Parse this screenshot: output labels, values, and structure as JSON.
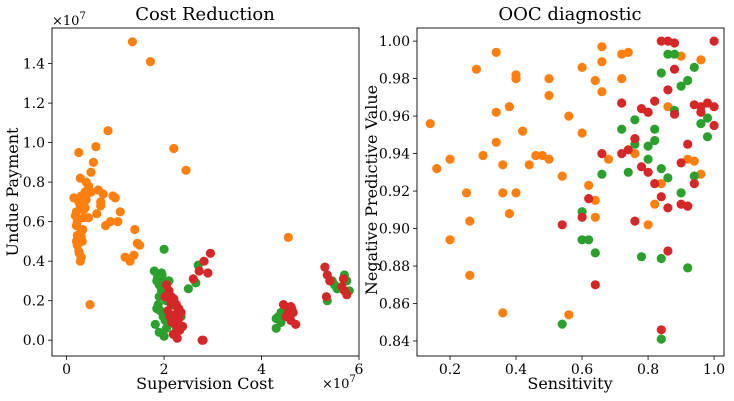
{
  "colors": {
    "orange": "#ff7f0e",
    "green": "#2ca02c",
    "red": "#d62728"
  },
  "chart_data": [
    {
      "type": "scatter",
      "title": "Cost Reduction",
      "xlabel": "Supervision Cost",
      "ylabel": "Undue Payment",
      "x_exponent_label": "×10^7",
      "y_exponent_label": "×10^7",
      "xlim": [
        -0.3,
        6.0
      ],
      "ylim": [
        -0.08,
        1.58
      ],
      "xticks": [
        0,
        2,
        4,
        6
      ],
      "xtick_labels": [
        "0",
        "2",
        "4",
        "6"
      ],
      "yticks": [
        0.0,
        0.2,
        0.4,
        0.6,
        0.8,
        1.0,
        1.2,
        1.4
      ],
      "ytick_labels": [
        "0.0",
        "0.2",
        "0.4",
        "0.6",
        "0.8",
        "1.0",
        "1.2",
        "1.4"
      ],
      "series": [
        {
          "name": "orange",
          "color": "#ff7f0e",
          "x": [
            0.15,
            0.2,
            0.22,
            0.25,
            0.28,
            0.3,
            0.32,
            0.35,
            0.38,
            0.4,
            0.25,
            0.3,
            0.28,
            0.2,
            0.18,
            0.35,
            0.4,
            0.42,
            0.45,
            0.3,
            0.22,
            0.26,
            0.33,
            0.38,
            0.5,
            0.55,
            0.6,
            0.65,
            0.7,
            0.8,
            0.9,
            1.0,
            1.1,
            1.2,
            1.3,
            1.4,
            1.5,
            0.85,
            0.75,
            0.62,
            0.5,
            0.48,
            0.45,
            0.7,
            0.95,
            1.05,
            1.35,
            1.38,
            1.45,
            1.72,
            2.2,
            2.45,
            0.25,
            0.28,
            0.3,
            0.32,
            0.2,
            0.22,
            4.55
          ],
          "y": [
            0.72,
            0.65,
            0.6,
            0.7,
            0.68,
            0.55,
            0.5,
            0.62,
            0.75,
            0.8,
            0.45,
            0.42,
            0.4,
            0.58,
            0.63,
            0.66,
            0.71,
            0.74,
            0.78,
            0.52,
            0.48,
            0.44,
            0.56,
            0.67,
            0.85,
            0.9,
            0.98,
            0.76,
            0.7,
            0.58,
            0.6,
            0.72,
            0.65,
            0.42,
            0.4,
            0.56,
            0.48,
            1.06,
            0.74,
            0.64,
            0.75,
            0.18,
            0.62,
            0.68,
            0.73,
            0.6,
            1.51,
            0.43,
            0.49,
            1.41,
            0.97,
            0.86,
            0.95,
            0.82,
            0.73,
            0.69,
            0.5,
            0.53,
            0.52
          ]
        },
        {
          "name": "green",
          "color": "#2ca02c",
          "x": [
            1.8,
            1.85,
            1.9,
            1.95,
            2.0,
            2.05,
            1.88,
            1.92,
            1.98,
            2.02,
            1.82,
            1.87,
            1.93,
            2.08,
            2.1,
            1.9,
            1.95,
            2.0,
            2.05,
            1.85,
            2.0,
            2.2,
            2.25,
            2.35,
            2.5,
            2.65,
            2.7,
            2.0,
            1.96,
            4.3,
            4.35,
            4.4,
            4.3,
            4.4,
            5.35,
            5.45,
            5.5,
            5.55,
            5.7,
            5.75,
            5.8,
            2.3,
            2.15,
            2.05,
            1.9
          ],
          "y": [
            0.35,
            0.3,
            0.28,
            0.25,
            0.22,
            0.2,
            0.18,
            0.15,
            0.12,
            0.1,
            0.08,
            0.32,
            0.27,
            0.24,
            0.3,
            0.22,
            0.34,
            0.29,
            0.06,
            0.16,
            0.46,
            0.1,
            0.05,
            0.12,
            0.26,
            0.29,
            0.38,
            0.02,
            0.33,
            0.06,
            0.12,
            0.09,
            0.11,
            0.14,
            0.2,
            0.3,
            0.28,
            0.26,
            0.33,
            0.3,
            0.25,
            0.14,
            0.18,
            0.2,
            0.04
          ]
        },
        {
          "name": "red",
          "color": "#d62728",
          "x": [
            2.05,
            2.1,
            2.15,
            2.2,
            2.25,
            2.3,
            2.35,
            2.12,
            2.18,
            2.22,
            2.28,
            2.32,
            2.08,
            2.14,
            2.2,
            2.26,
            2.3,
            2.16,
            2.24,
            2.38,
            2.02,
            2.19,
            2.27,
            2.6,
            2.72,
            2.82,
            2.9,
            2.95,
            2.78,
            2.8,
            4.45,
            4.5,
            4.6,
            4.65,
            4.7,
            4.55,
            4.6,
            4.62,
            5.3,
            5.35,
            5.4,
            5.65,
            5.7,
            5.75,
            5.68,
            5.33
          ],
          "y": [
            0.28,
            0.25,
            0.22,
            0.2,
            0.18,
            0.16,
            0.14,
            0.12,
            0.1,
            0.08,
            0.06,
            0.05,
            0.15,
            0.19,
            0.21,
            0.17,
            0.11,
            0.09,
            0.13,
            0.07,
            0.22,
            0.03,
            0.01,
            0.31,
            0.35,
            0.4,
            0.34,
            0.44,
            0.0,
            0.0,
            0.18,
            0.12,
            0.1,
            0.14,
            0.08,
            0.15,
            0.17,
            0.16,
            0.37,
            0.33,
            0.3,
            0.27,
            0.25,
            0.23,
            0.31,
            0.22
          ]
        }
      ]
    },
    {
      "type": "scatter",
      "title": "OOC diagnostic",
      "xlabel": "Sensitivity",
      "ylabel": "Negative Predictive Value",
      "xlim": [
        0.1,
        1.03
      ],
      "ylim": [
        0.832,
        1.007
      ],
      "xticks": [
        0.2,
        0.4,
        0.6,
        0.8,
        1.0
      ],
      "xtick_labels": [
        "0.2",
        "0.4",
        "0.6",
        "0.8",
        "1.0"
      ],
      "yticks": [
        0.84,
        0.86,
        0.88,
        0.9,
        0.92,
        0.94,
        0.96,
        0.98,
        1.0
      ],
      "ytick_labels": [
        "0.84",
        "0.86",
        "0.88",
        "0.90",
        "0.92",
        "0.94",
        "0.96",
        "0.98",
        "1.00"
      ],
      "series": [
        {
          "name": "orange",
          "color": "#ff7f0e",
          "x": [
            0.14,
            0.16,
            0.2,
            0.2,
            0.25,
            0.26,
            0.26,
            0.28,
            0.3,
            0.34,
            0.34,
            0.34,
            0.36,
            0.36,
            0.38,
            0.38,
            0.4,
            0.4,
            0.4,
            0.42,
            0.44,
            0.46,
            0.48,
            0.5,
            0.5,
            0.5,
            0.54,
            0.56,
            0.56,
            0.6,
            0.6,
            0.62,
            0.64,
            0.64,
            0.64,
            0.66,
            0.66,
            0.66,
            0.68,
            0.72,
            0.74,
            0.76,
            0.8,
            0.82,
            0.84,
            0.86,
            0.9,
            0.92,
            0.94,
            0.96,
            0.96,
            0.36,
            0.72
          ],
          "y": [
            0.956,
            0.932,
            0.894,
            0.937,
            0.919,
            0.904,
            0.875,
            0.985,
            0.939,
            0.994,
            0.962,
            0.946,
            0.919,
            0.855,
            0.908,
            0.965,
            0.98,
            0.982,
            0.919,
            0.952,
            0.934,
            0.939,
            0.939,
            0.98,
            0.971,
            0.937,
            0.928,
            0.96,
            0.854,
            0.986,
            0.951,
            0.923,
            0.979,
            0.915,
            0.906,
            0.997,
            0.973,
            0.989,
            0.937,
            0.993,
            0.994,
            0.94,
            0.902,
            0.913,
            0.924,
            0.965,
            0.992,
            0.937,
            0.936,
            0.99,
            0.929,
            0.934,
            0.98
          ]
        },
        {
          "name": "green",
          "color": "#2ca02c",
          "x": [
            0.54,
            0.6,
            0.6,
            0.62,
            0.64,
            0.66,
            0.72,
            0.74,
            0.76,
            0.78,
            0.8,
            0.8,
            0.82,
            0.82,
            0.84,
            0.84,
            0.84,
            0.86,
            0.86,
            0.88,
            0.88,
            0.9,
            0.9,
            0.92,
            0.92,
            0.94,
            0.94,
            0.96,
            0.98,
            0.98,
            0.76,
            0.84
          ],
          "y": [
            0.849,
            0.894,
            0.909,
            0.894,
            0.887,
            0.929,
            0.953,
            0.93,
            0.945,
            0.885,
            0.937,
            0.944,
            0.947,
            0.953,
            0.983,
            0.884,
            0.932,
            0.993,
            0.927,
            0.993,
            0.963,
            0.919,
            0.976,
            0.879,
            0.979,
            0.986,
            0.928,
            0.956,
            0.959,
            0.949,
            0.958,
            0.841
          ]
        },
        {
          "name": "red",
          "color": "#d62728",
          "x": [
            0.54,
            0.6,
            0.62,
            0.64,
            0.66,
            0.72,
            0.74,
            0.76,
            0.78,
            0.8,
            0.8,
            0.82,
            0.82,
            0.84,
            0.84,
            0.86,
            0.86,
            0.86,
            0.88,
            0.88,
            0.88,
            0.9,
            0.9,
            0.92,
            0.92,
            0.94,
            0.94,
            0.96,
            0.96,
            0.98,
            1.0,
            1.0,
            1.0,
            0.72,
            0.76,
            0.78,
            0.8,
            0.84,
            0.86,
            0.92
          ],
          "y": [
            0.902,
            0.906,
            0.916,
            0.87,
            0.94,
            0.94,
            0.942,
            0.904,
            0.964,
            0.93,
            0.962,
            0.968,
            0.924,
            1.0,
            0.846,
            1.0,
            0.911,
            0.888,
            0.999,
            0.985,
            0.961,
            0.935,
            0.913,
            0.912,
            0.945,
            0.924,
            0.966,
            0.962,
            0.965,
            0.967,
            1.0,
            0.965,
            0.955,
            0.967,
            0.948,
            0.933,
            0.962,
            0.917,
            0.974,
            0.912
          ]
        }
      ]
    }
  ]
}
